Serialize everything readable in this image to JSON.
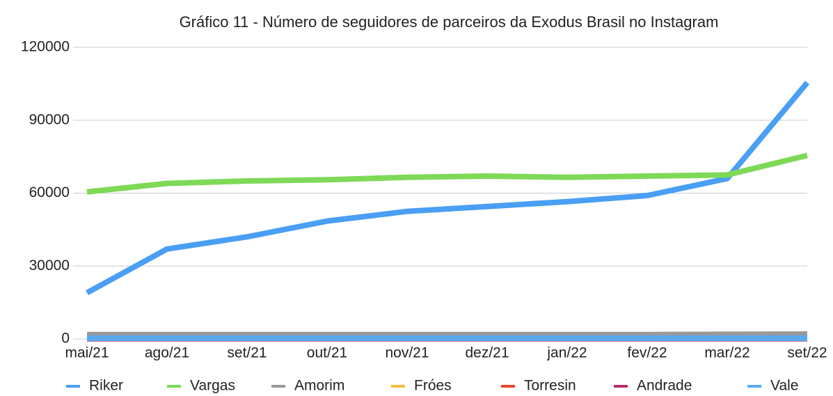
{
  "chart_data": {
    "type": "line",
    "title": "Gráfico 11 - Número de seguidores de parceiros da Exodus Brasil no Instagram",
    "categories": [
      "mai/21",
      "ago/21",
      "set/21",
      "out/21",
      "nov/21",
      "dez/21",
      "jan/22",
      "fev/22",
      "mar/22",
      "set/22"
    ],
    "series": [
      {
        "name": "Riker",
        "color": "#4a9ff5",
        "values": [
          19000,
          37000,
          42000,
          48500,
          52500,
          54500,
          56500,
          59000,
          66000,
          105500
        ]
      },
      {
        "name": "Vargas",
        "color": "#7ed957",
        "values": [
          60500,
          64000,
          65000,
          65500,
          66500,
          67000,
          66500,
          67000,
          67500,
          75500
        ]
      },
      {
        "name": "Amorim",
        "color": "#999999",
        "values": [
          1800,
          1800,
          1800,
          1800,
          1800,
          1800,
          1800,
          1800,
          1900,
          2000
        ]
      },
      {
        "name": "Fróes",
        "color": "#f3c03c",
        "values": [
          200,
          200,
          200,
          200,
          200,
          200,
          200,
          200,
          200,
          200
        ]
      },
      {
        "name": "Torresin",
        "color": "#e8452c",
        "values": [
          100,
          100,
          100,
          100,
          100,
          100,
          100,
          100,
          100,
          100
        ]
      },
      {
        "name": "Andrade",
        "color": "#b5306e",
        "values": [
          100,
          100,
          100,
          100,
          100,
          100,
          100,
          100,
          100,
          100
        ]
      },
      {
        "name": "Vale",
        "color": "#5aaaf0",
        "values": [
          300,
          300,
          300,
          300,
          300,
          300,
          300,
          300,
          300,
          300
        ]
      }
    ],
    "ylim": [
      0,
      120000
    ],
    "yticks": [
      0,
      30000,
      60000,
      90000,
      120000
    ],
    "grid": true,
    "legend": "bottom"
  }
}
